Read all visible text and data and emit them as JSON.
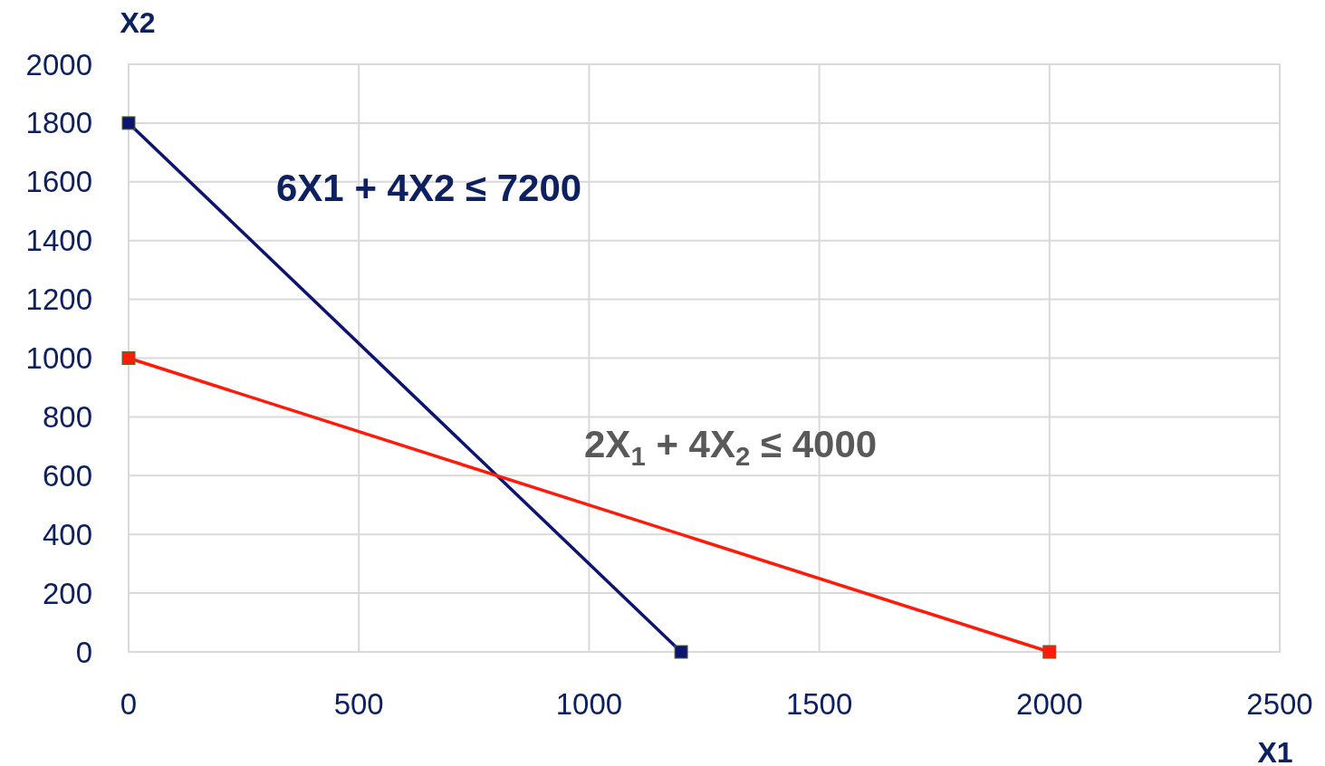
{
  "chart_data": {
    "type": "line",
    "xlabel": "X1",
    "ylabel": "X2",
    "xlim": [
      0,
      2500
    ],
    "xticks": [
      0,
      500,
      1000,
      1500,
      2000,
      2500
    ],
    "ylim": [
      0,
      2000
    ],
    "yticks": [
      0,
      200,
      400,
      600,
      800,
      1000,
      1200,
      1400,
      1600,
      1800,
      2000
    ],
    "grid": true,
    "marker": "square",
    "line_style": "solid",
    "series": [
      {
        "color": "#0d1470",
        "x": [
          0,
          1200
        ],
        "values": [
          1800,
          0
        ]
      },
      {
        "color": "#ff1a0a",
        "x": [
          0,
          2000
        ],
        "values": [
          1000,
          0
        ]
      }
    ],
    "annotations": [
      "6X1 + 4X2 ≤ 7200",
      "2X$_{1}$ + 4X$_{2}$ ≤ 4000"
    ]
  }
}
